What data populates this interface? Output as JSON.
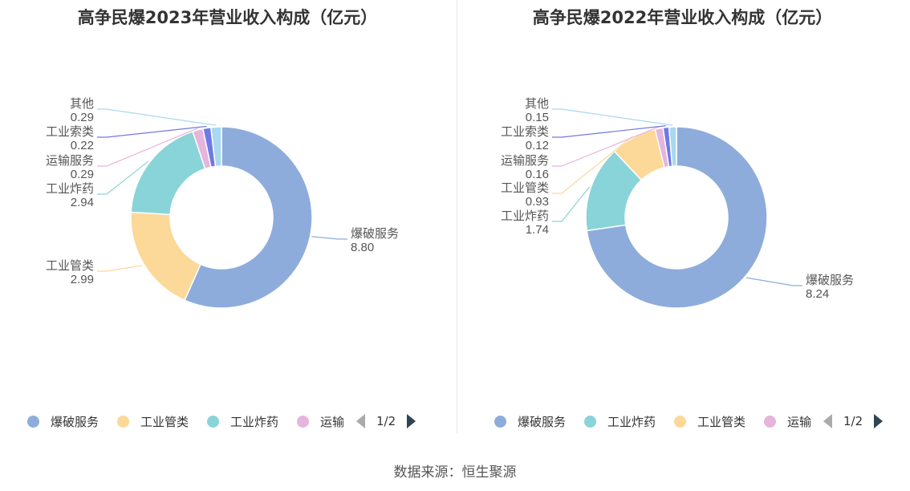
{
  "chart_data": [
    {
      "type": "pie",
      "title": "高争民爆2023年营业收入构成（亿元）",
      "slices": [
        {
          "name": "爆破服务",
          "value": 8.8,
          "label_value": "8.80",
          "color": "#8eacdb"
        },
        {
          "name": "工业管类",
          "value": 2.99,
          "label_value": "2.99",
          "color": "#fcd899"
        },
        {
          "name": "工业炸药",
          "value": 2.94,
          "label_value": "2.94",
          "color": "#89d4d9"
        },
        {
          "name": "运输服务",
          "value": 0.29,
          "label_value": "0.29",
          "color": "#e6b4dc"
        },
        {
          "name": "工业索类",
          "value": 0.22,
          "label_value": "0.22",
          "color": "#6f79e6"
        },
        {
          "name": "其他",
          "value": 0.29,
          "label_value": "0.29",
          "color": "#a9d8f0"
        }
      ],
      "legend": [
        "爆破服务",
        "工业管类",
        "工业炸药",
        "运输"
      ],
      "pager": "1/2"
    },
    {
      "type": "pie",
      "title": "高争民爆2022年营业收入构成（亿元）",
      "slices": [
        {
          "name": "爆破服务",
          "value": 8.24,
          "label_value": "8.24",
          "color": "#8eacdb"
        },
        {
          "name": "工业炸药",
          "value": 1.74,
          "label_value": "1.74",
          "color": "#89d4d9"
        },
        {
          "name": "工业管类",
          "value": 0.93,
          "label_value": "0.93",
          "color": "#fcd899"
        },
        {
          "name": "运输服务",
          "value": 0.16,
          "label_value": "0.16",
          "color": "#e6b4dc"
        },
        {
          "name": "工业索类",
          "value": 0.12,
          "label_value": "0.12",
          "color": "#6f79e6"
        },
        {
          "name": "其他",
          "value": 0.15,
          "label_value": "0.15",
          "color": "#a9d8f0"
        }
      ],
      "legend": [
        "爆破服务",
        "工业炸药",
        "工业管类",
        "运输"
      ],
      "pager": "1/2"
    }
  ],
  "source": "数据来源：恒生聚源"
}
